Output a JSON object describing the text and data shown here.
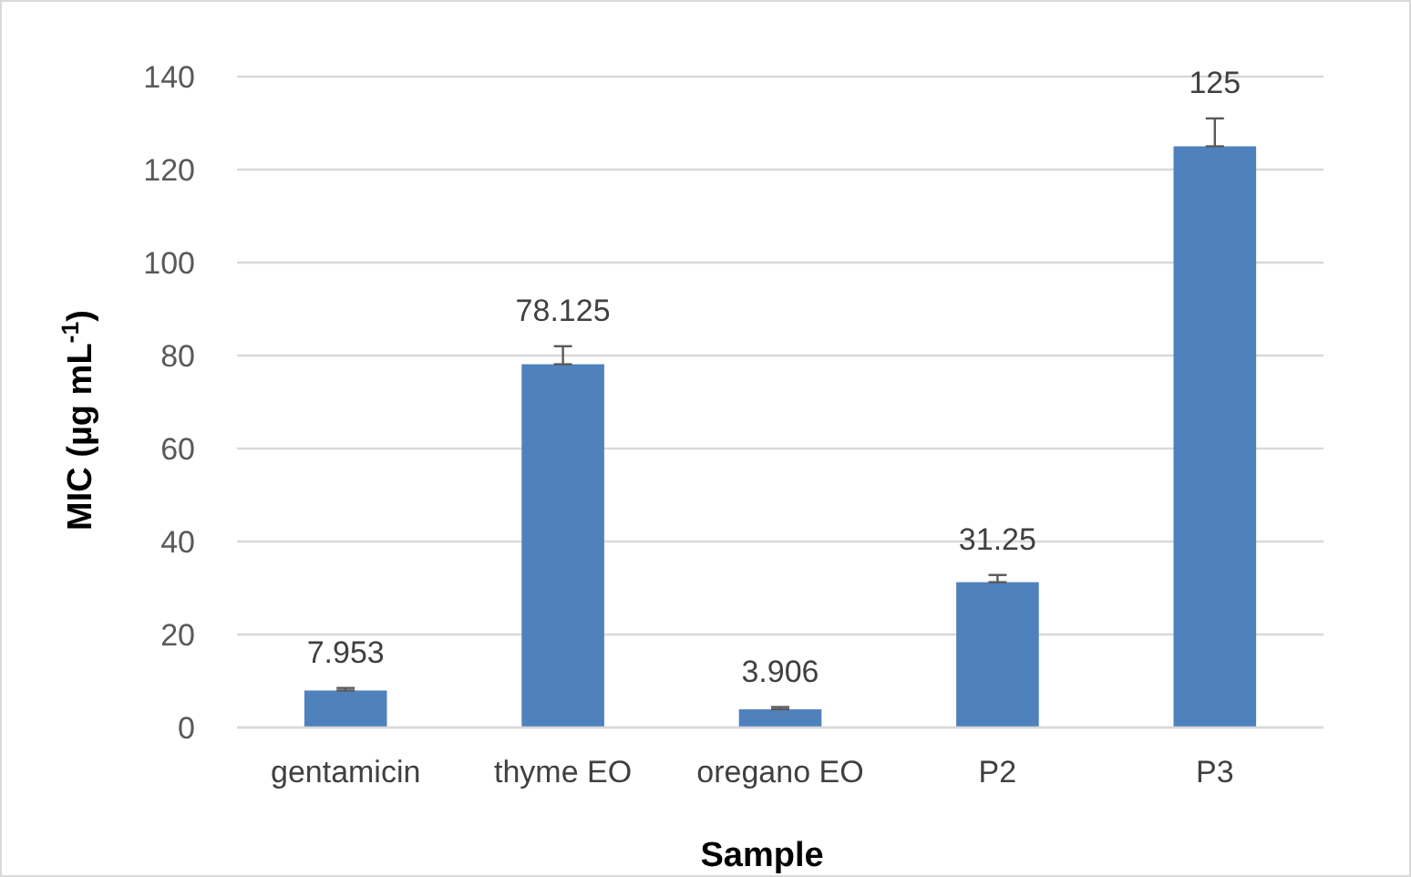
{
  "chart_data": {
    "type": "bar",
    "xlabel": "Sample",
    "ylabel": "MIC (µg mL$^{-1}$)",
    "categories": [
      "gentamicin",
      "thyme EO",
      "oregano EO",
      "P2",
      "P3"
    ],
    "values": [
      7.953,
      78.125,
      3.906,
      31.25,
      125
    ],
    "errors": [
      [
        7.953,
        8.5
      ],
      [
        78.125,
        82
      ],
      [
        3.906,
        4.4
      ],
      [
        31.25,
        32.8
      ],
      [
        125,
        131
      ]
    ],
    "color": "#4f81bd",
    "data_labels": true,
    "grid": "y",
    "ylim": [
      0,
      140
    ],
    "yticks": [
      0,
      20,
      40,
      60,
      80,
      100,
      120,
      140
    ]
  }
}
